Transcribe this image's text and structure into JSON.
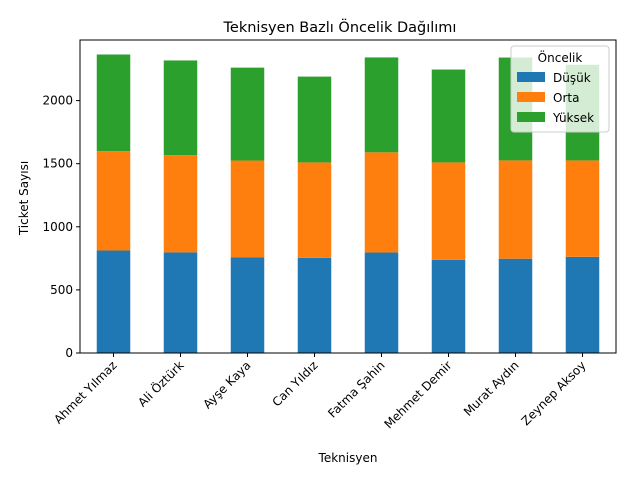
{
  "chart_data": {
    "type": "bar",
    "stacked": true,
    "title": "Teknisyen Bazlı Öncelik Dağılımı",
    "xlabel": "Teknisyen",
    "ylabel": "Ticket Sayısı",
    "categories": [
      "Ahmet Yılmaz",
      "Ali Öztürk",
      "Ayşe Kaya",
      "Can Yıldız",
      "Fatma Şahin",
      "Mehmet Demir",
      "Murat Aydın",
      "Zeynep Aksoy"
    ],
    "series": [
      {
        "name": "Düşük",
        "color": "#1f77b4",
        "values": [
          812,
          797,
          757,
          754,
          796,
          738,
          747,
          762
        ]
      },
      {
        "name": "Orta",
        "color": "#ff7f0e",
        "values": [
          787,
          771,
          768,
          756,
          794,
          772,
          779,
          764
        ]
      },
      {
        "name": "Yüksek",
        "color": "#2ca02c",
        "values": [
          766,
          750,
          736,
          680,
          752,
          736,
          815,
          758
        ]
      }
    ],
    "ylim": [
      0,
      2480
    ],
    "yticks": [
      0,
      500,
      1000,
      1500,
      2000
    ],
    "grid": false,
    "legend": {
      "title": "Öncelik",
      "placement": "top-right"
    }
  }
}
